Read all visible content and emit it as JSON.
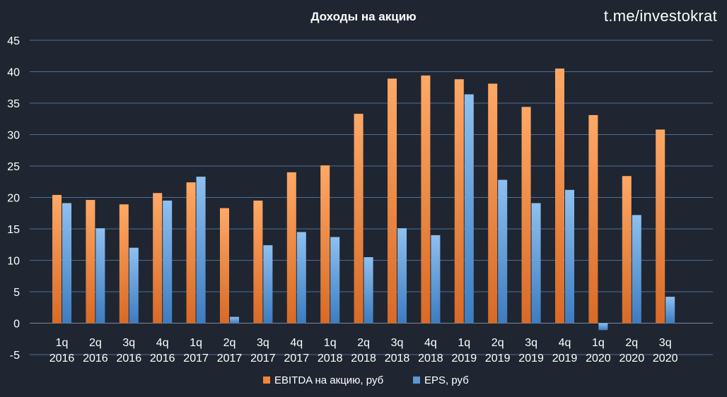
{
  "watermark": "t.me/investokrat",
  "chart_data": {
    "type": "bar",
    "title": "Доходы на акцию",
    "categories": [
      [
        "1q",
        "2016"
      ],
      [
        "2q",
        "2016"
      ],
      [
        "3q",
        "2016"
      ],
      [
        "4q",
        "2016"
      ],
      [
        "1q",
        "2017"
      ],
      [
        "2q",
        "2017"
      ],
      [
        "3q",
        "2017"
      ],
      [
        "4q",
        "2017"
      ],
      [
        "1q",
        "2018"
      ],
      [
        "2q",
        "2018"
      ],
      [
        "3q",
        "2018"
      ],
      [
        "4q",
        "2018"
      ],
      [
        "1q",
        "2019"
      ],
      [
        "2q",
        "2019"
      ],
      [
        "3q",
        "2019"
      ],
      [
        "4q",
        "2019"
      ],
      [
        "1q",
        "2020"
      ],
      [
        "2q",
        "2020"
      ],
      [
        "3q",
        "2020"
      ]
    ],
    "series": [
      {
        "name": "EBITDA на акцию, руб",
        "color": "#ee8540",
        "values": [
          20.4,
          19.6,
          18.9,
          20.7,
          22.4,
          18.3,
          19.5,
          24.0,
          25.1,
          33.3,
          38.9,
          39.4,
          38.8,
          38.1,
          34.4,
          40.5,
          33.1,
          23.4,
          30.8
        ]
      },
      {
        "name": "EPS, руб",
        "color": "#5b97d5",
        "values": [
          19.1,
          15.1,
          12.0,
          19.5,
          23.3,
          1.0,
          12.4,
          14.5,
          13.7,
          10.5,
          15.1,
          14.0,
          36.4,
          22.8,
          19.1,
          21.2,
          -1.1,
          17.2,
          4.2
        ]
      }
    ],
    "ylim": [
      -5,
      45
    ],
    "yticks": [
      -5,
      0,
      5,
      10,
      15,
      20,
      25,
      30,
      35,
      40,
      45
    ],
    "grid": true,
    "legend_position": "bottom"
  }
}
